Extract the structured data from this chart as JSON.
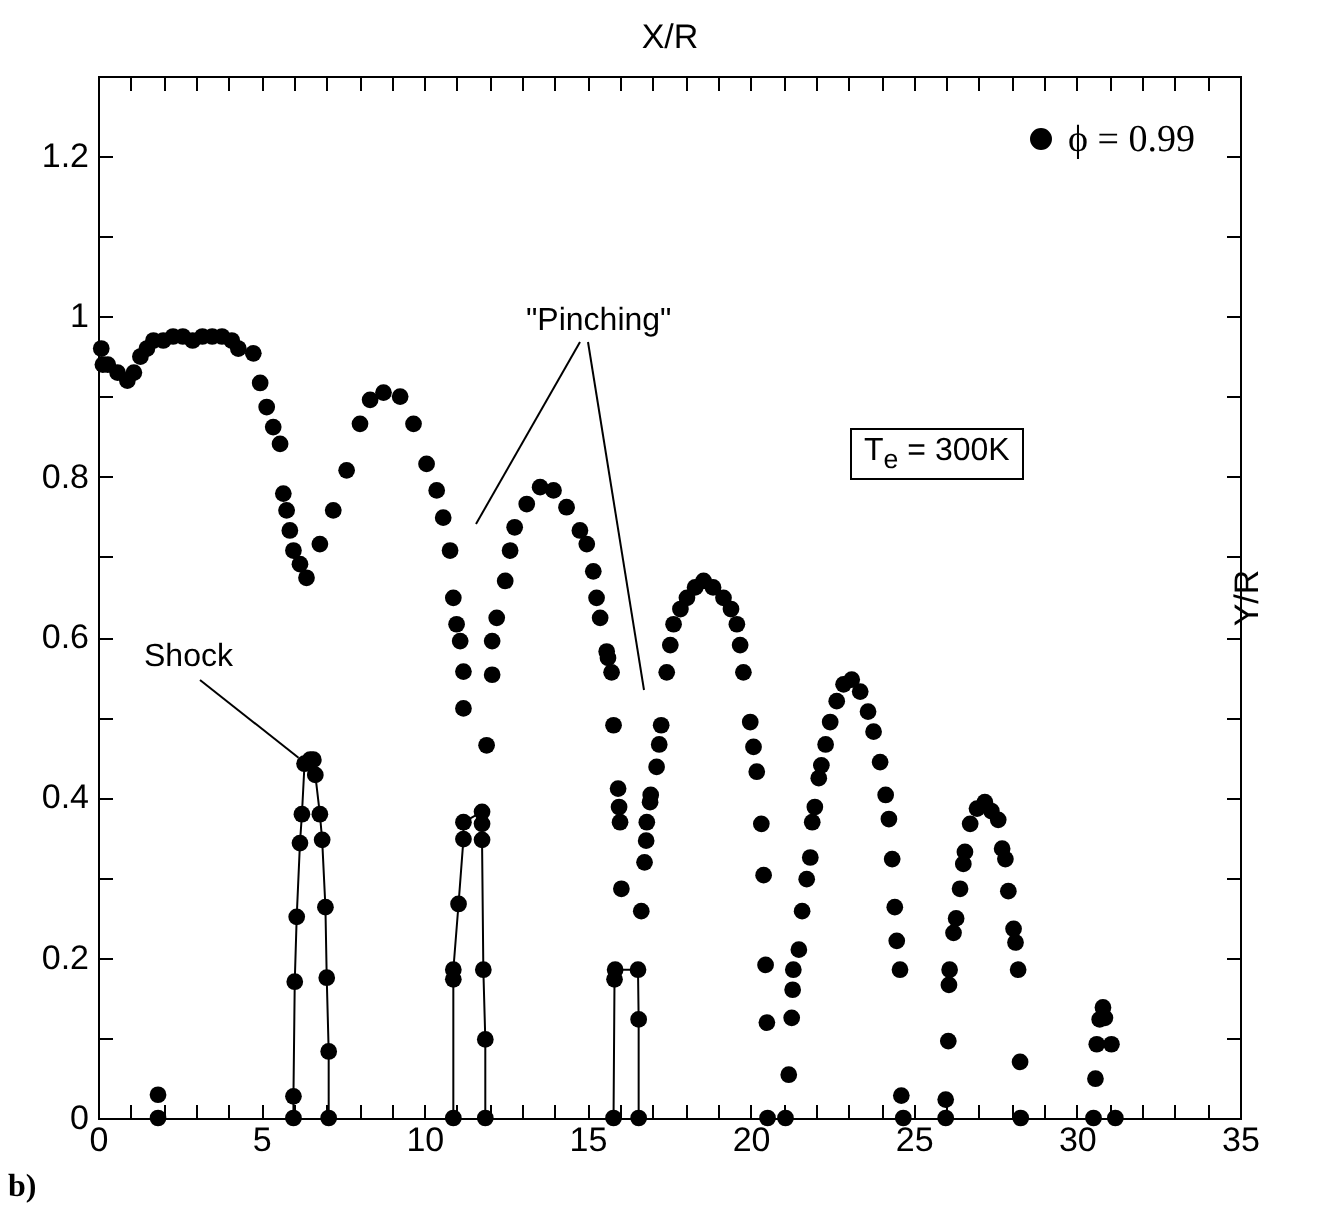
{
  "chart_data": {
    "type": "scatter",
    "xlabel": "X/R",
    "ylabel": "Y/R",
    "annotations": [
      "\"Pinching\"",
      {
        "text": "Shock",
        "x": 6.33,
        "y": 0.442
      },
      "T$_{e}$ = 300K",
      "b)"
    ],
    "xlim": [
      0,
      35
    ],
    "ylim": [
      0,
      1.3
    ],
    "xticks": [
      0,
      {
        "value": 1,
        "label": null
      },
      {
        "value": 2,
        "label": null
      },
      {
        "value": 3,
        "label": null
      },
      {
        "value": 4,
        "label": null
      },
      5,
      {
        "value": 6,
        "label": null
      },
      {
        "value": 7,
        "label": null
      },
      {
        "value": 8,
        "label": null
      },
      {
        "value": 9,
        "label": null
      },
      10,
      {
        "value": 11,
        "label": null
      },
      {
        "value": 12,
        "label": null
      },
      {
        "value": 13,
        "label": null
      },
      {
        "value": 14,
        "label": null
      },
      15,
      {
        "value": 16,
        "label": null
      },
      {
        "value": 17,
        "label": null
      },
      {
        "value": 18,
        "label": null
      },
      {
        "value": 19,
        "label": null
      },
      20,
      {
        "value": 21,
        "label": null
      },
      {
        "value": 22,
        "label": null
      },
      {
        "value": 23,
        "label": null
      },
      {
        "value": 24,
        "label": null
      },
      25,
      {
        "value": 26,
        "label": null
      },
      {
        "value": 27,
        "label": null
      },
      {
        "value": 28,
        "label": null
      },
      {
        "value": 29,
        "label": null
      },
      30,
      {
        "value": 31,
        "label": null
      },
      {
        "value": 32,
        "label": null
      },
      {
        "value": 33,
        "label": null
      },
      {
        "value": 34,
        "label": null
      },
      35
    ],
    "yticks": [
      0,
      {
        "value": 0.1,
        "label": null
      },
      0.2,
      {
        "value": 0.3,
        "label": null
      },
      0.4,
      {
        "value": 0.5,
        "label": null
      },
      0.6,
      {
        "value": 0.7,
        "label": null
      },
      0.8,
      {
        "value": 0.9,
        "label": null
      },
      1,
      {
        "value": 1.1,
        "label": null
      },
      1.2
    ],
    "grid": false,
    "legend": "top right",
    "series": [
      {
        "name": "ϕ = 0.99",
        "color": "#000000",
        "x": [
          0.1,
          0.15,
          0.3,
          0.6,
          0.9,
          1.1,
          1.3,
          1.5,
          1.7,
          2.0,
          2.3,
          2.6,
          2.9,
          3.2,
          3.5,
          3.8,
          4.1,
          4.3,
          1.84,
          1.84,
          4.76,
          4.97,
          5.17,
          5.37,
          5.58,
          5.68,
          5.78,
          5.88,
          5.99,
          6.19,
          6.39,
          6.8,
          7.21,
          7.62,
          8.03,
          8.34,
          8.75,
          9.26,
          9.67,
          10.07,
          10.38,
          10.58,
          10.79,
          10.89,
          10.99,
          11.1,
          11.2,
          11.2,
          5.99,
          5.99,
          6.03,
          6.09,
          6.19,
          6.25,
          6.33,
          6.5,
          6.6,
          6.66,
          6.8,
          6.87,
          6.97,
          7.01,
          7.07,
          7.07,
          10.89,
          10.89,
          10.89,
          11.05,
          11.2,
          11.2,
          11.77,
          11.77,
          11.77,
          11.81,
          11.87,
          11.87,
          11.91,
          12.08,
          12.08,
          12.22,
          12.48,
          12.63,
          12.77,
          13.14,
          13.55,
          13.96,
          14.36,
          14.77,
          14.98,
          15.18,
          15.28,
          15.39,
          15.59,
          15.63,
          15.74,
          15.8,
          15.94,
          15.97,
          16.0,
          16.04,
          15.8,
          15.83,
          15.85,
          16.55,
          16.57,
          16.57,
          16.65,
          16.75,
          16.8,
          16.82,
          16.92,
          16.94,
          17.12,
          17.2,
          17.26,
          17.43,
          17.54,
          17.64,
          17.85,
          18.05,
          18.3,
          18.56,
          18.85,
          19.17,
          19.4,
          19.58,
          19.68,
          19.78,
          19.99,
          20.09,
          20.19,
          20.33,
          20.4,
          20.46,
          20.5,
          20.52,
          21.07,
          21.17,
          21.26,
          21.29,
          21.31,
          21.48,
          21.58,
          21.72,
          21.83,
          21.89,
          21.97,
          22.09,
          22.17,
          22.3,
          22.44,
          22.64,
          22.85,
          23.1,
          23.36,
          23.6,
          23.77,
          23.97,
          24.14,
          24.24,
          24.34,
          24.42,
          24.48,
          24.58,
          24.62,
          24.68,
          25.98,
          25.98,
          26.06,
          26.08,
          26.1,
          26.22,
          26.3,
          26.42,
          26.52,
          26.57,
          26.73,
          26.94,
          27.18,
          27.38,
          27.59,
          27.71,
          27.81,
          27.9,
          28.06,
          28.12,
          28.2,
          28.26,
          28.28,
          30.51,
          30.57,
          30.61,
          30.7,
          30.8,
          30.86,
          31.06,
          31.18
        ],
        "values": [
          0.96,
          0.94,
          0.94,
          0.93,
          0.92,
          0.93,
          0.95,
          0.96,
          0.97,
          0.97,
          0.975,
          0.975,
          0.97,
          0.975,
          0.975,
          0.975,
          0.97,
          0.96,
          0.029,
          0,
          0.954,
          0.917,
          0.887,
          0.862,
          0.841,
          0.779,
          0.758,
          0.733,
          0.708,
          0.691,
          0.674,
          0.716,
          0.758,
          0.808,
          0.866,
          0.896,
          0.905,
          0.9,
          0.866,
          0.816,
          0.783,
          0.749,
          0.708,
          0.649,
          0.616,
          0.595,
          0.557,
          0.511,
          0,
          0.027,
          0.17,
          0.251,
          0.343,
          0.379,
          0.442,
          0.447,
          0.447,
          0.428,
          0.379,
          0.347,
          0.263,
          0.175,
          0.083,
          0,
          0,
          0.173,
          0.185,
          0.267,
          0.348,
          0.369,
          0.382,
          0.367,
          0.347,
          0.185,
          0.098,
          0,
          0.465,
          0.553,
          0.595,
          0.624,
          0.67,
          0.708,
          0.737,
          0.766,
          0.787,
          0.783,
          0.762,
          0.733,
          0.716,
          0.682,
          0.649,
          0.624,
          0.582,
          0.574,
          0.556,
          0.49,
          0.411,
          0.388,
          0.369,
          0.286,
          0,
          0.173,
          0.185,
          0.185,
          0.123,
          0,
          0.258,
          0.319,
          0.346,
          0.369,
          0.394,
          0.403,
          0.438,
          0.466,
          0.49,
          0.556,
          0.59,
          0.616,
          0.635,
          0.649,
          0.662,
          0.67,
          0.662,
          0.649,
          0.635,
          0.616,
          0.59,
          0.556,
          0.494,
          0.463,
          0.432,
          0.367,
          0.303,
          0.191,
          0.119,
          0,
          0,
          0.054,
          0.125,
          0.16,
          0.185,
          0.21,
          0.258,
          0.298,
          0.325,
          0.369,
          0.388,
          0.424,
          0.44,
          0.466,
          0.494,
          0.52,
          0.541,
          0.547,
          0.532,
          0.507,
          0.482,
          0.444,
          0.403,
          0.373,
          0.323,
          0.263,
          0.221,
          0.185,
          0.028,
          0,
          0,
          0.023,
          0.096,
          0.166,
          0.185,
          0.231,
          0.249,
          0.286,
          0.317,
          0.332,
          0.367,
          0.386,
          0.394,
          0.383,
          0.372,
          0.336,
          0.323,
          0.283,
          0.236,
          0.219,
          0.185,
          0.07,
          0,
          0,
          0.049,
          0.092,
          0.123,
          0.138,
          0.125,
          0.092,
          0
        ]
      },
      {
        "color": "#000000",
        "type": "line",
        "x": [
          5.99,
          5.99,
          6.03,
          6.09,
          6.19,
          6.25,
          6.33,
          6.5,
          6.6,
          6.66,
          6.8,
          6.87,
          6.97,
          7.01,
          7.07,
          7.07
        ],
        "values": [
          0,
          0.027,
          0.17,
          0.251,
          0.343,
          0.379,
          0.442,
          0.447,
          0.447,
          0.428,
          0.379,
          0.347,
          0.263,
          0.175,
          0.083,
          0
        ]
      },
      {
        "color": "#000000",
        "type": "line",
        "x": [
          10.89,
          10.89,
          10.89,
          11.05,
          11.2,
          11.2,
          11.77,
          11.77,
          11.77,
          11.81,
          11.87,
          11.87
        ],
        "values": [
          0,
          0.173,
          0.185,
          0.267,
          0.348,
          0.369,
          0.382,
          0.367,
          0.347,
          0.185,
          0.098,
          0
        ]
      },
      {
        "color": "#000000",
        "type": "line",
        "x": [
          15.8,
          15.83,
          15.85,
          16.55,
          16.57,
          16.57
        ],
        "values": [
          0,
          0.173,
          0.185,
          0.185,
          0.123,
          0
        ]
      }
    ]
  }
}
